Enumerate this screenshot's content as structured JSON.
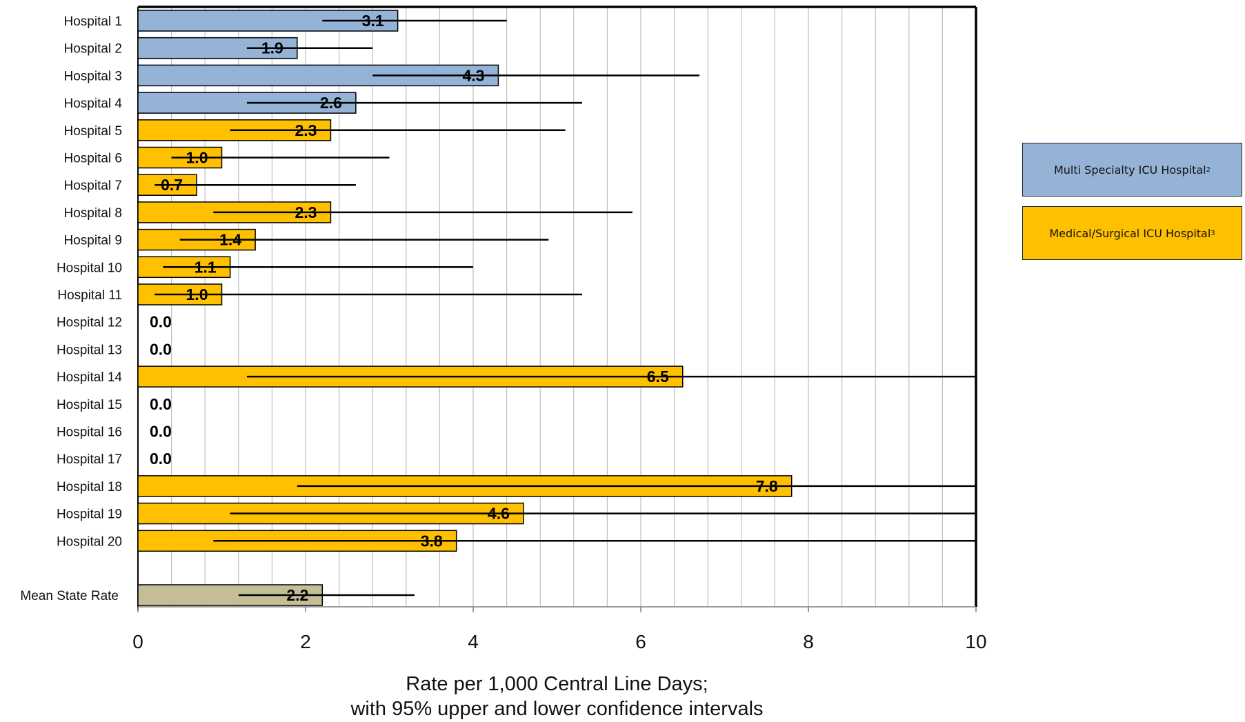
{
  "chart_data": {
    "type": "bar",
    "orientation": "horizontal",
    "categories": [
      "Hospital 1",
      "Hospital 2",
      "Hospital 3",
      "Hospital 4",
      "Hospital 5",
      "Hospital 6",
      "Hospital 7",
      "Hospital 8",
      "Hospital 9",
      "Hospital 10",
      "Hospital 11",
      "Hospital 12",
      "Hospital 13",
      "Hospital 14",
      "Hospital 15",
      "Hospital 16",
      "Hospital 17",
      "Hospital 18",
      "Hospital 19",
      "Hospital 20",
      "Mean State Rate"
    ],
    "values": [
      3.1,
      1.9,
      4.3,
      2.6,
      2.3,
      1.0,
      0.7,
      2.3,
      1.4,
      1.1,
      1.0,
      0.0,
      0.0,
      6.5,
      0.0,
      0.0,
      0.0,
      7.8,
      4.6,
      3.8,
      2.2
    ],
    "data_labels": [
      "3.1",
      "1.9",
      "4.3",
      "2.6",
      "2.3",
      "1.0",
      "0.7",
      "2.3",
      "1.4",
      "1.1",
      "1.0",
      "0.0",
      "0.0",
      "6.5",
      "0.0",
      "0.0",
      "0.0",
      "7.8",
      "4.6",
      "3.8",
      "2.2"
    ],
    "ci_lower": [
      2.2,
      1.3,
      2.8,
      1.3,
      1.1,
      0.4,
      0.2,
      0.9,
      0.5,
      0.3,
      0.2,
      null,
      null,
      1.3,
      null,
      null,
      null,
      1.9,
      1.1,
      0.9,
      1.2
    ],
    "ci_upper": [
      4.4,
      2.8,
      6.7,
      5.3,
      5.1,
      3.0,
      2.6,
      5.9,
      4.9,
      4.0,
      5.3,
      null,
      null,
      10,
      null,
      null,
      null,
      10,
      10,
      10,
      3.3
    ],
    "groups": [
      "multi",
      "multi",
      "multi",
      "multi",
      "med",
      "med",
      "med",
      "med",
      "med",
      "med",
      "med",
      "med",
      "med",
      "med",
      "med",
      "med",
      "med",
      "med",
      "med",
      "med",
      "mean"
    ],
    "colors": {
      "multi": "#95b3d7",
      "med": "#ffc000",
      "mean": "#c4bd97",
      "grid": "#bfbfbf",
      "axis": "#000000"
    },
    "legend": [
      {
        "key": "multi",
        "label": "Multi Specialty ICU Hospital",
        "sup": "2"
      },
      {
        "key": "med",
        "label": "Medical/Surgical ICU Hospital",
        "sup": "3"
      }
    ],
    "xlim": [
      0,
      10
    ],
    "xticks": [
      0,
      2,
      4,
      6,
      8,
      10
    ],
    "xtick_labels": [
      "0",
      "2",
      "4",
      "6",
      "8",
      "10"
    ],
    "xlabel_line1": "Rate per 1,000 Central Line Days;",
    "xlabel_line2": "with 95% upper and lower confidence intervals",
    "title": "",
    "grid": "vertical minor",
    "legend_position": "right"
  }
}
